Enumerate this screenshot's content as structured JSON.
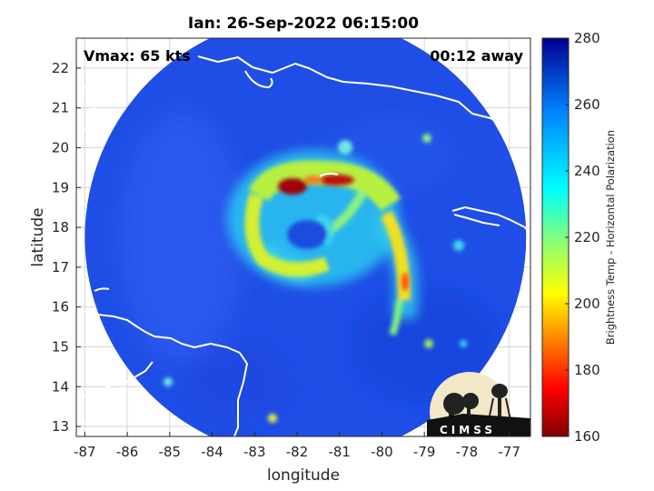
{
  "chart_data": {
    "type": "heatmap",
    "title": "Ian: 26-Sep-2022 06:15:00",
    "xlabel": "longitude",
    "ylabel": "latitude",
    "xlim": [
      -87.2,
      -76.5
    ],
    "ylim": [
      12.75,
      22.75
    ],
    "x_ticks": [
      -87,
      -86,
      -85,
      -84,
      -83,
      -82,
      -81,
      -80,
      -79,
      -78,
      -77
    ],
    "y_ticks": [
      13,
      14,
      15,
      16,
      17,
      18,
      19,
      20,
      21,
      22
    ],
    "grid": true,
    "annotations": [
      {
        "id": "vmax",
        "text": "Vmax: 65 kts",
        "position": "top-left"
      },
      {
        "id": "away",
        "text": "00:12 away",
        "position": "top-right"
      }
    ],
    "storm_center": {
      "lon": -81.7,
      "lat": 17.9
    },
    "swath": {
      "center_lon": -81.8,
      "center_lat": 17.75,
      "radius_deg": 5.2
    },
    "background_brightness_temp": 262,
    "colorbar": {
      "label": "Brightness Temp - Horizontal Polarization",
      "range": [
        160,
        280
      ],
      "ticks": [
        160,
        180,
        200,
        220,
        240,
        260,
        280
      ],
      "colormap": "jet"
    },
    "features": [
      {
        "name": "eyewall-north",
        "lon": -81.8,
        "lat": 19.0,
        "value": 168
      },
      {
        "name": "eyewall-north-east",
        "lon": -81.0,
        "lat": 19.1,
        "value": 172
      },
      {
        "name": "outer-band-south-east",
        "lon": -79.7,
        "lat": 16.6,
        "value": 190
      }
    ]
  },
  "logo": {
    "text": "CIMSS"
  }
}
